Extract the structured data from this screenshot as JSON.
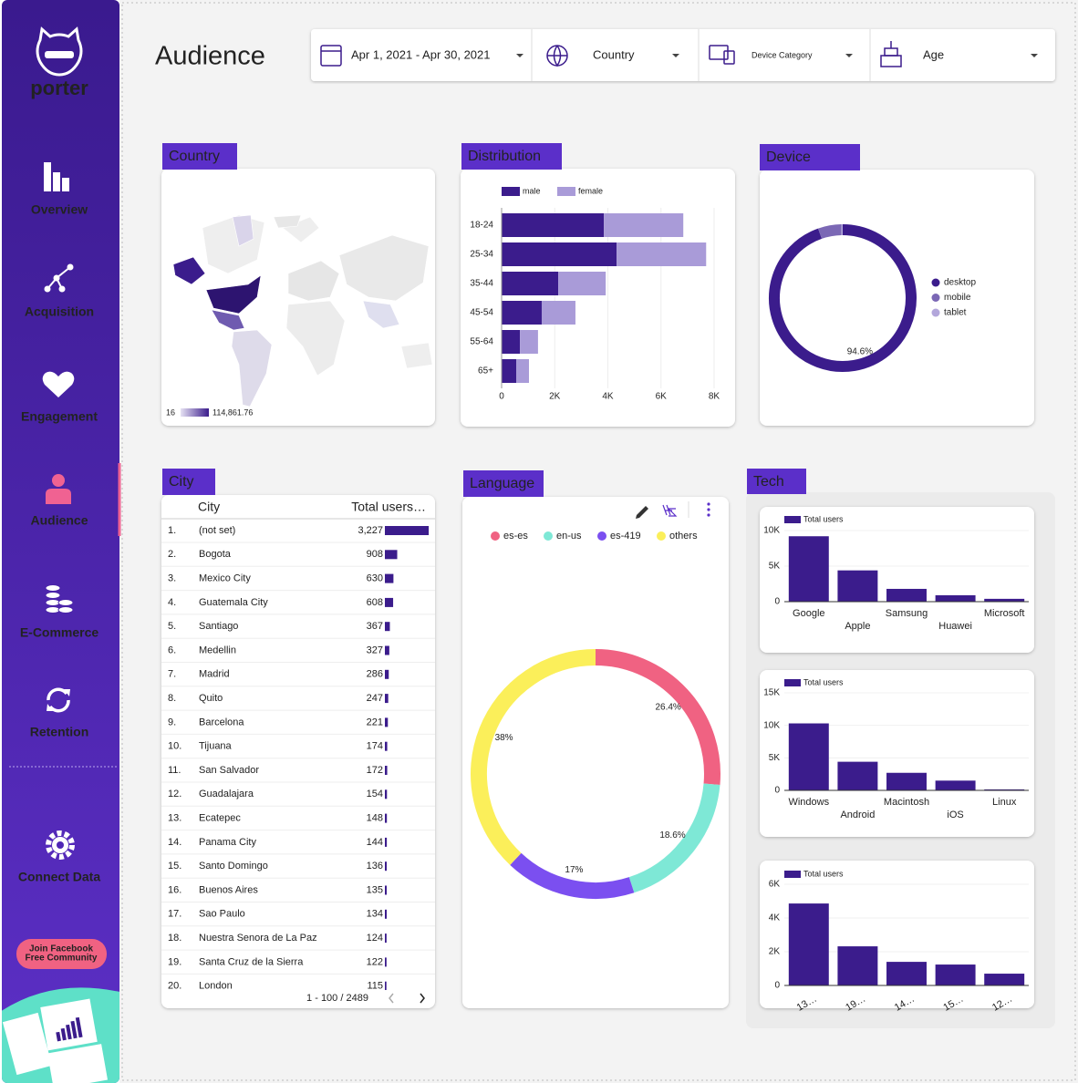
{
  "sidebar": {
    "brand": "porter",
    "nav": [
      "Overview",
      "Acquisition",
      "Engagement",
      "Audience",
      "E-Commerce",
      "Retention",
      "Connect Data"
    ],
    "active": 3,
    "cta": [
      "Join Facebook",
      "Free Community"
    ]
  },
  "header": {
    "title": "Audience",
    "filters": [
      "Apr 1, 2021 - Apr 30, 2021",
      "Country",
      "Device Category",
      "Age"
    ]
  },
  "country_map": {
    "title": "Country",
    "legend_min": "16",
    "legend_max": "114,861.76"
  },
  "city_table": {
    "title": "City",
    "columns": [
      "City",
      "Total users…"
    ],
    "rows": [
      {
        "rank": "1.",
        "city": "(not set)",
        "users": {
          "value": 3227,
          "label": "3,227"
        }
      },
      {
        "rank": "2.",
        "city": "Bogota",
        "users": {
          "value": 908,
          "label": "908"
        }
      },
      {
        "rank": "3.",
        "city": "Mexico City",
        "users": {
          "value": 630,
          "label": "630"
        }
      },
      {
        "rank": "4.",
        "city": "Guatemala City",
        "users": {
          "value": 608,
          "label": "608"
        }
      },
      {
        "rank": "5.",
        "city": "Santiago",
        "users": {
          "value": 367,
          "label": "367"
        }
      },
      {
        "rank": "6.",
        "city": "Medellin",
        "users": {
          "value": 327,
          "label": "327"
        }
      },
      {
        "rank": "7.",
        "city": "Madrid",
        "users": {
          "value": 286,
          "label": "286"
        }
      },
      {
        "rank": "8.",
        "city": "Quito",
        "users": {
          "value": 247,
          "label": "247"
        }
      },
      {
        "rank": "9.",
        "city": "Barcelona",
        "users": {
          "value": 221,
          "label": "221"
        }
      },
      {
        "rank": "10.",
        "city": "Tijuana",
        "users": {
          "value": 174,
          "label": "174"
        }
      },
      {
        "rank": "11.",
        "city": "San Salvador",
        "users": {
          "value": 172,
          "label": "172"
        }
      },
      {
        "rank": "12.",
        "city": "Guadalajara",
        "users": {
          "value": 154,
          "label": "154"
        }
      },
      {
        "rank": "13.",
        "city": "Ecatepec",
        "users": {
          "value": 148,
          "label": "148"
        }
      },
      {
        "rank": "14.",
        "city": "Panama City",
        "users": {
          "value": 144,
          "label": "144"
        }
      },
      {
        "rank": "15.",
        "city": "Santo Domingo",
        "users": {
          "value": 136,
          "label": "136"
        }
      },
      {
        "rank": "16.",
        "city": "Buenos Aires",
        "users": {
          "value": 135,
          "label": "135"
        }
      },
      {
        "rank": "17.",
        "city": "Sao Paulo",
        "users": {
          "value": 134,
          "label": "134"
        }
      },
      {
        "rank": "18.",
        "city": "Nuestra Senora de La Paz",
        "users": {
          "value": 124,
          "label": "124"
        }
      },
      {
        "rank": "19.",
        "city": "Santa Cruz de la Sierra",
        "users": {
          "value": 122,
          "label": "122"
        }
      },
      {
        "rank": "20.",
        "city": "London",
        "users": {
          "value": 115,
          "label": "115"
        }
      }
    ],
    "pagination": "1 - 100 / 2489"
  },
  "tech_title": "Tech",
  "chart_data": [
    {
      "type": "bar",
      "orientation": "horizontal",
      "stacked": true,
      "title": "Distribution",
      "categories": [
        "18-24",
        "25-34",
        "35-44",
        "45-54",
        "55-64",
        "65+"
      ],
      "series": [
        {
          "name": "male",
          "color": "#3b1c8c",
          "values": [
            3850,
            4330,
            2130,
            1510,
            690,
            550
          ]
        },
        {
          "name": "female",
          "color": "#a99bd8",
          "values": [
            2990,
            3370,
            1790,
            1270,
            680,
            480
          ]
        }
      ],
      "xlim": [
        0,
        8000
      ],
      "xticks": [
        0,
        {
          "value": 2000,
          "label": "2K"
        },
        {
          "value": 4000,
          "label": "4K"
        },
        {
          "value": 6000,
          "label": "6K"
        },
        {
          "value": 8000,
          "label": "8K"
        }
      ],
      "grid": true
    },
    {
      "type": "donut",
      "title": "Device",
      "categories": [
        "desktop",
        "mobile",
        "tablet"
      ],
      "colors": [
        "#3b1c8c",
        "#7b68b5",
        "#b3a7db"
      ],
      "values": [
        94.6,
        5.1,
        0.3
      ],
      "value_labels": [
        "94.6%",
        null,
        null
      ],
      "legend": "right"
    },
    {
      "type": "donut",
      "title": "Language",
      "categories": [
        "es-es",
        "en-us",
        "es-419",
        "others"
      ],
      "colors": [
        "#f06282",
        "#7ee8d6",
        "#7b4ff0",
        "#fbef5a"
      ],
      "values": [
        26.4,
        18.6,
        17,
        38
      ],
      "value_labels": [
        "26.4%",
        "18.6%",
        "17%",
        "38%"
      ],
      "legend": "top"
    },
    {
      "type": "bar",
      "categories": [
        "Google",
        "Apple",
        "Samsung",
        "Huawei",
        "Microsoft"
      ],
      "series": [
        {
          "name": "Total users",
          "color": "#3b1c8c",
          "values": [
            9200,
            4400,
            1800,
            900,
            400
          ]
        }
      ],
      "ylim": [
        0,
        10000
      ],
      "yticks": [
        0,
        {
          "value": 5000,
          "label": "5K"
        },
        {
          "value": 10000,
          "label": "10K"
        }
      ],
      "grid": true
    },
    {
      "type": "bar",
      "categories": [
        "Windows",
        "Android",
        "Macintosh",
        "iOS",
        "Linux"
      ],
      "series": [
        {
          "name": "Total users",
          "color": "#3b1c8c",
          "values": [
            10300,
            4400,
            2700,
            1500,
            150
          ]
        }
      ],
      "ylim": [
        0,
        15000
      ],
      "yticks": [
        0,
        {
          "value": 5000,
          "label": "5K"
        },
        {
          "value": 10000,
          "label": "10K"
        },
        {
          "value": 15000,
          "label": "15K"
        }
      ],
      "grid": true
    },
    {
      "type": "bar",
      "categories": [
        "13…",
        "19…",
        "14…",
        "15…",
        "12…"
      ],
      "series": [
        {
          "name": "Total users",
          "color": "#3b1c8c",
          "values": [
            4860,
            2320,
            1400,
            1240,
            700
          ]
        }
      ],
      "ylim": [
        0,
        6000
      ],
      "yticks": [
        0,
        {
          "value": 2000,
          "label": "2K"
        },
        {
          "value": 4000,
          "label": "4K"
        },
        {
          "value": 6000,
          "label": "6K"
        }
      ],
      "grid": true
    }
  ]
}
